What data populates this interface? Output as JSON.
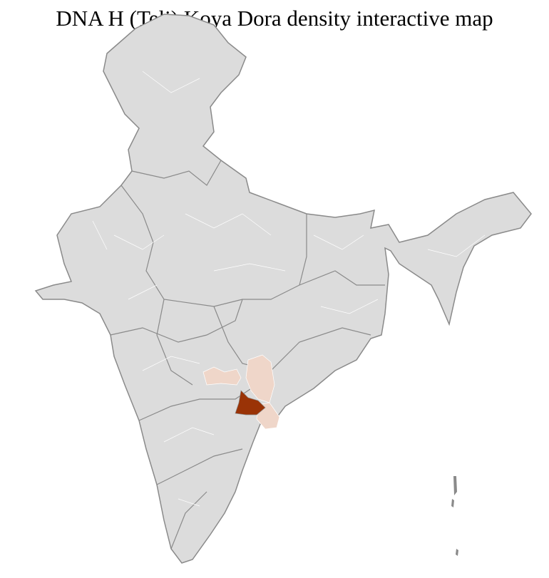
{
  "title": "DNA H (Teli) Koya Dora density interactive map",
  "colors": {
    "base": "#dcdcdc",
    "district_border": "#ffffff",
    "state_border": "#8a8a8a",
    "low_density": "#efd6c9",
    "high_density": "#9a3306"
  }
}
